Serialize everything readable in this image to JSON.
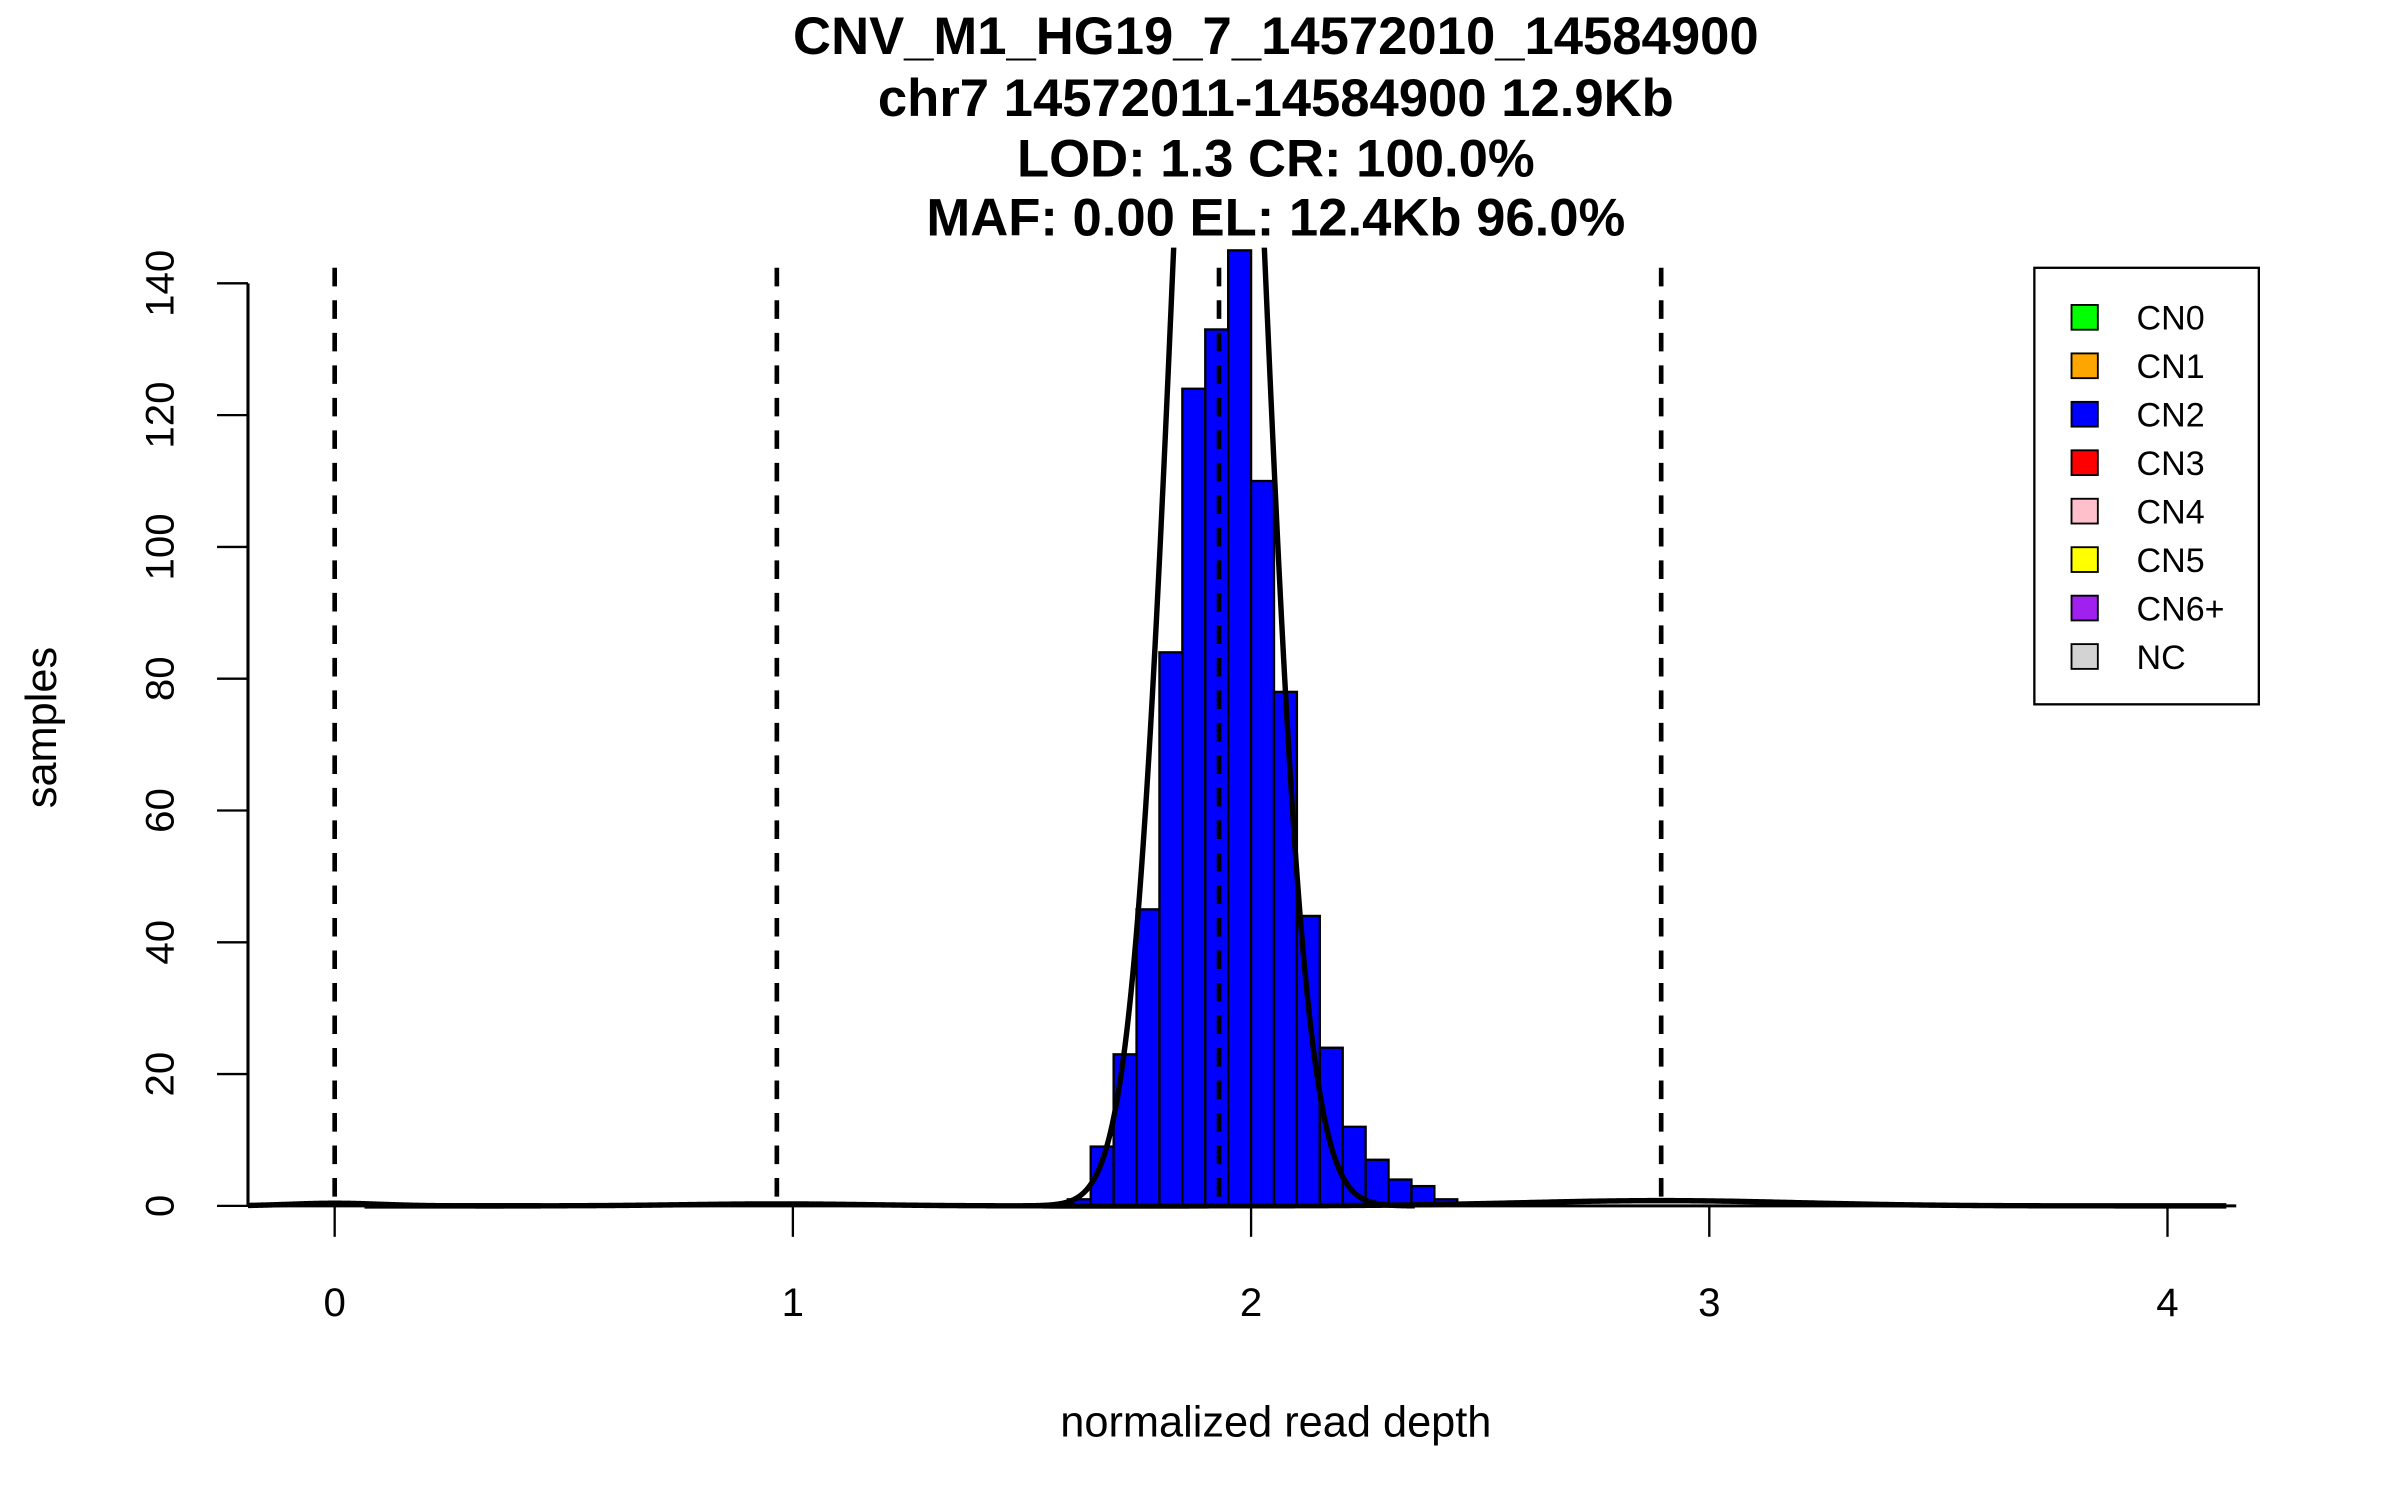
{
  "chart_data": {
    "type": "bar",
    "title_lines": [
      "CNV_M1_HG19_7_14572010_14584900",
      "chr7 14572011-14584900 12.9Kb",
      "LOD: 1.3 CR: 100.0%",
      "MAF: 0.00 EL: 12.4Kb 96.0%"
    ],
    "xlabel": "normalized read depth",
    "ylabel": "samples",
    "xlim": [
      -0.15,
      4.15
    ],
    "ylim": [
      0,
      140
    ],
    "x_ticks": [
      "0",
      "1",
      "2",
      "3",
      "4"
    ],
    "y_ticks": [
      "0",
      "20",
      "40",
      "60",
      "80",
      "100",
      "120",
      "140"
    ],
    "bin_width": 0.05,
    "bins": [
      {
        "x0": 1.6,
        "count": 1,
        "cn": "CN2"
      },
      {
        "x0": 1.65,
        "count": 9,
        "cn": "CN2"
      },
      {
        "x0": 1.7,
        "count": 23,
        "cn": "CN2"
      },
      {
        "x0": 1.75,
        "count": 45,
        "cn": "CN2"
      },
      {
        "x0": 1.8,
        "count": 84,
        "cn": "CN2"
      },
      {
        "x0": 1.85,
        "count": 124,
        "cn": "CN2"
      },
      {
        "x0": 1.9,
        "count": 133,
        "cn": "CN2"
      },
      {
        "x0": 1.95,
        "count": 145,
        "cn": "CN2"
      },
      {
        "x0": 2.0,
        "count": 110,
        "cn": "CN2"
      },
      {
        "x0": 2.05,
        "count": 78,
        "cn": "CN2"
      },
      {
        "x0": 2.1,
        "count": 44,
        "cn": "CN2"
      },
      {
        "x0": 2.15,
        "count": 24,
        "cn": "CN2"
      },
      {
        "x0": 2.2,
        "count": 12,
        "cn": "CN2"
      },
      {
        "x0": 2.25,
        "count": 7,
        "cn": "CN2"
      },
      {
        "x0": 2.3,
        "count": 4,
        "cn": "CN2"
      },
      {
        "x0": 2.35,
        "count": 3,
        "cn": "CN2"
      },
      {
        "x0": 2.4,
        "count": 1,
        "cn": "CN2"
      }
    ],
    "copy_number_thresholds": [
      0.0,
      0.965,
      1.93,
      2.895
    ],
    "fit_curves": [
      {
        "mean": 1.93,
        "sd": 0.095,
        "peak": 250
      },
      {
        "mean": 0.0,
        "sd": 0.1,
        "peak": 0.4
      },
      {
        "mean": 0.965,
        "sd": 0.2,
        "peak": 0.3
      },
      {
        "mean": 2.895,
        "sd": 0.3,
        "peak": 0.8
      }
    ],
    "legend": {
      "placement": "top-right",
      "entries": [
        {
          "label": "CN0",
          "color": "#00ff00"
        },
        {
          "label": "CN1",
          "color": "#ffa500"
        },
        {
          "label": "CN2",
          "color": "#0000ff"
        },
        {
          "label": "CN3",
          "color": "#ff0000"
        },
        {
          "label": "CN4",
          "color": "#ffc0cb"
        },
        {
          "label": "CN5",
          "color": "#ffff00"
        },
        {
          "label": "CN6+",
          "color": "#a020f0"
        },
        {
          "label": "NC",
          "color": "#d3d3d3"
        }
      ]
    }
  }
}
